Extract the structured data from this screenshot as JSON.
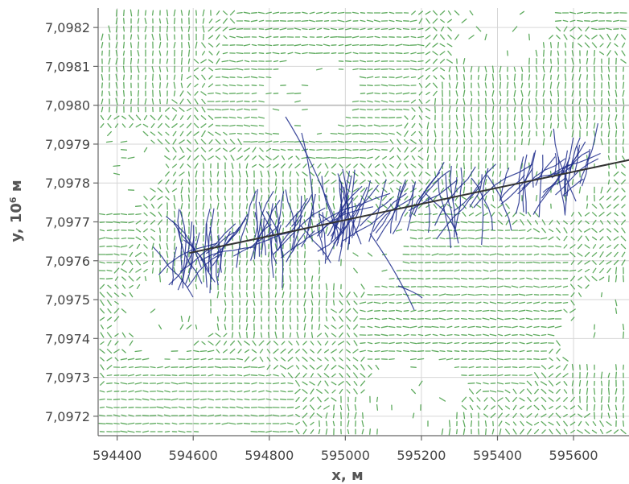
{
  "chart_data": {
    "type": "scatter",
    "title": "",
    "xlabel": "x, м",
    "ylabel_main": "y, 10",
    "ylabel_exp": "6",
    "ylabel_unit": " м",
    "xlim": [
      594350,
      595750
    ],
    "ylim": [
      7.09715,
      7.09825
    ],
    "x_ticks": [
      594400,
      594600,
      594800,
      595000,
      595200,
      595400,
      595600
    ],
    "x_tick_labels": [
      "594400",
      "594600",
      "594800",
      "595000",
      "595200",
      "595400",
      "595600"
    ],
    "y_ticks": [
      7.0972,
      7.0973,
      7.0974,
      7.0975,
      7.0976,
      7.0977,
      7.0978,
      7.0979,
      7.098,
      7.0981,
      7.0982
    ],
    "y_tick_labels": [
      "7,0972",
      "7,0973",
      "7,0974",
      "7,0975",
      "7,0976",
      "7,0977",
      "7,0978",
      "7,0979",
      "7,0980",
      "7,0981",
      "7,0982"
    ],
    "grid": true,
    "colors": {
      "field": "#4ea24e",
      "traces": "#1f2d8c",
      "profile": "#333333",
      "grid": "#d6d6d6",
      "axis": "#666666"
    },
    "profile_line": {
      "x": [
        594590,
        595750
      ],
      "y": [
        7.09762,
        7.09786
      ]
    }
  }
}
